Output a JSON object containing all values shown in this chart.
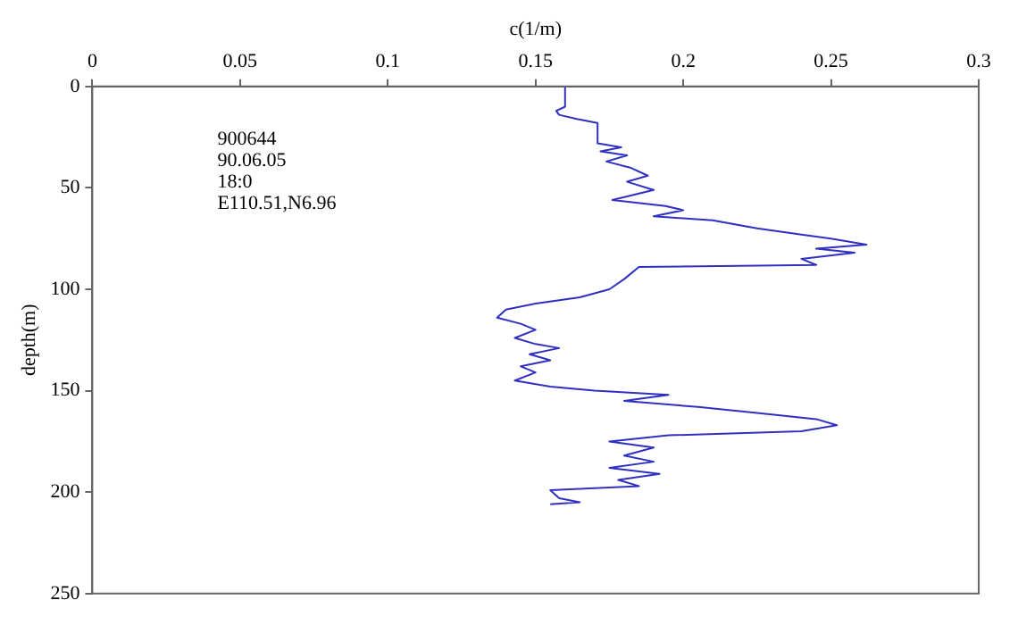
{
  "chart_data": {
    "type": "line",
    "xlabel": "c(1/m)",
    "ylabel": "depth(m)",
    "xlim": [
      0,
      0.3
    ],
    "xticks": [
      0,
      0.05,
      0.1,
      0.15,
      0.2,
      0.25,
      0.3
    ],
    "ylim": [
      250,
      0
    ],
    "yticks": [
      0,
      50,
      100,
      150,
      200,
      250
    ],
    "grid": false,
    "legend": false,
    "marker": "none",
    "line_style": "solid",
    "annotations": [
      "900644",
      "90.06.05",
      "18:0",
      "E110.51,N6.96"
    ],
    "series": [
      {
        "color": "#3030c0",
        "x": [
          0.16,
          0.16,
          0.157,
          0.158,
          0.164,
          0.171,
          0.171,
          0.179,
          0.172,
          0.181,
          0.174,
          0.182,
          0.188,
          0.181,
          0.19,
          0.176,
          0.194,
          0.2,
          0.19,
          0.21,
          0.225,
          0.24,
          0.25,
          0.262,
          0.245,
          0.258,
          0.24,
          0.245,
          0.185,
          0.18,
          0.175,
          0.165,
          0.15,
          0.14,
          0.137,
          0.145,
          0.15,
          0.143,
          0.15,
          0.158,
          0.148,
          0.155,
          0.145,
          0.15,
          0.143,
          0.155,
          0.17,
          0.195,
          0.18,
          0.205,
          0.225,
          0.245,
          0.252,
          0.24,
          0.195,
          0.175,
          0.19,
          0.18,
          0.19,
          0.175,
          0.192,
          0.178,
          0.185,
          0.155,
          0.158,
          0.165,
          0.155
        ],
        "values": [
          0,
          10,
          12,
          14,
          16,
          18,
          28,
          30,
          32,
          34,
          37,
          40,
          44,
          47,
          51,
          56,
          59,
          61,
          64,
          66,
          70,
          73,
          75,
          78,
          80,
          82,
          85,
          88,
          89,
          95,
          100,
          104,
          107,
          110,
          114,
          117,
          120,
          124,
          127,
          129,
          132,
          135,
          138,
          141,
          145,
          148,
          150,
          152,
          155,
          158,
          161,
          164,
          167,
          170,
          172,
          175,
          178,
          182,
          185,
          188,
          191,
          194,
          197,
          199,
          203,
          205,
          206
        ]
      }
    ]
  }
}
